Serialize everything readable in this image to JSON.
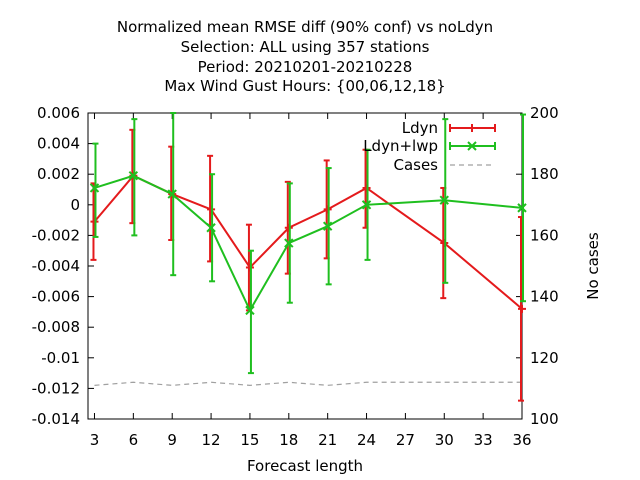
{
  "chart_data": {
    "type": "line",
    "title_lines": [
      "Normalized mean RMSE diff (90% conf) vs noLdyn",
      "Selection: ALL using   357 stations",
      "Period: 20210201-20210228",
      "Max Wind Gust   Hours: {00,06,12,18}"
    ],
    "xlabel": "Forecast length",
    "ylabel": "",
    "y2label": "No cases",
    "xlim": [
      2.5,
      36
    ],
    "ylim": [
      -0.014,
      0.006
    ],
    "y2lim": [
      100,
      200
    ],
    "x_ticks": [
      3,
      6,
      9,
      12,
      15,
      18,
      21,
      24,
      27,
      30,
      33,
      36
    ],
    "y_ticks": [
      -0.014,
      -0.012,
      -0.01,
      -0.008,
      -0.006,
      -0.004,
      -0.002,
      0,
      0.002,
      0.004,
      0.006
    ],
    "y_tick_labels": [
      "-0.014",
      "-0.012",
      "-0.01",
      "-0.008",
      "-0.006",
      "-0.004",
      "-0.002",
      "0",
      "0.002",
      "0.004",
      "0.006"
    ],
    "y2_ticks": [
      100,
      120,
      140,
      160,
      180,
      200
    ],
    "y2_tick_labels": [
      "100",
      "120",
      "140",
      "160",
      "180",
      "200"
    ],
    "grid": false,
    "legend_position": "top-right",
    "series": [
      {
        "name": "Ldyn",
        "color": "#e41a1c",
        "axis": "y",
        "marker": "plus",
        "x": [
          3,
          6,
          9,
          12,
          15,
          18,
          21,
          24,
          30,
          36
        ],
        "y": [
          -0.0011,
          0.0019,
          0.0007,
          -0.0003,
          -0.0041,
          -0.0015,
          -0.0003,
          0.0011,
          -0.0025,
          -0.0068
        ],
        "ylow": [
          -0.0036,
          -0.0012,
          -0.0023,
          -0.0037,
          -0.0069,
          -0.0045,
          -0.0035,
          -0.0015,
          -0.0061,
          -0.0128
        ],
        "yhigh": [
          0.0014,
          0.0049,
          0.0038,
          0.0032,
          -0.0013,
          0.0015,
          0.0029,
          0.0036,
          0.0011,
          -0.0008
        ]
      },
      {
        "name": "Ldyn+lwp",
        "color": "#1fbf1f",
        "axis": "y",
        "marker": "cross",
        "x": [
          3,
          6,
          9,
          12,
          15,
          18,
          21,
          24,
          30,
          36
        ],
        "y": [
          0.0011,
          0.0019,
          0.0007,
          -0.0015,
          -0.0069,
          -0.0025,
          -0.0014,
          0.0,
          0.0003,
          -0.0002
        ],
        "ylow": [
          -0.0021,
          -0.002,
          -0.0046,
          -0.005,
          -0.011,
          -0.0064,
          -0.0052,
          -0.0036,
          -0.0051,
          -0.0063
        ],
        "yhigh": [
          0.004,
          0.0056,
          0.006,
          0.002,
          -0.003,
          0.0014,
          0.0024,
          0.0036,
          0.0056,
          0.0059
        ]
      },
      {
        "name": "Cases",
        "color": "#a0a0a0",
        "axis": "y2",
        "dashed": true,
        "x": [
          3,
          6,
          9,
          12,
          15,
          18,
          21,
          24,
          27,
          30,
          33,
          36
        ],
        "y": [
          111,
          112,
          111,
          112,
          111,
          112,
          111,
          112,
          112,
          112,
          112,
          112
        ]
      }
    ]
  }
}
